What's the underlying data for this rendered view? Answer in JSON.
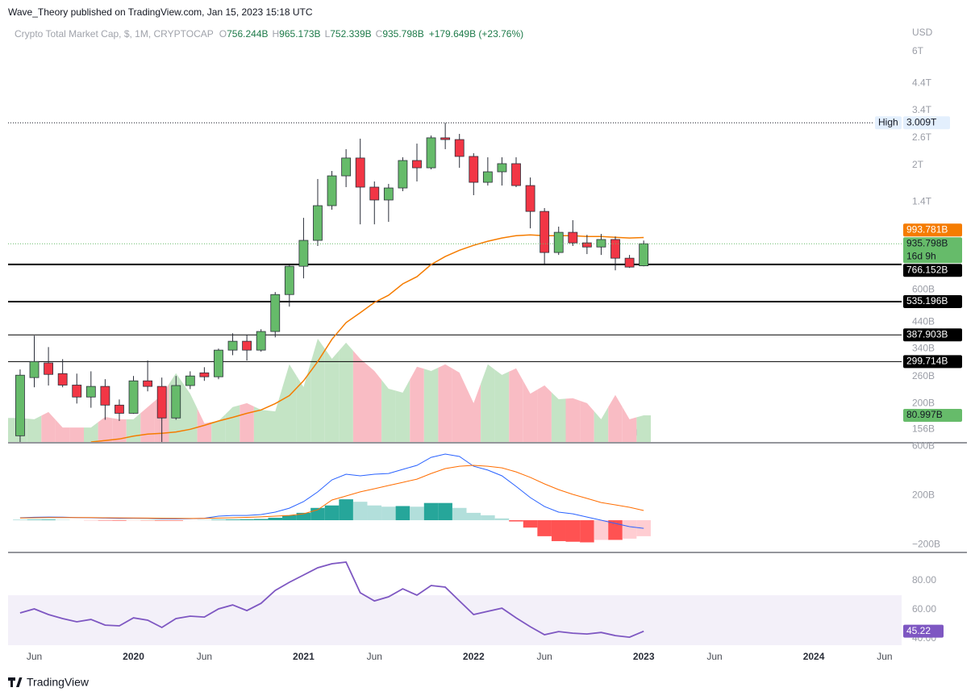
{
  "header": {
    "text": "Wave_Theory published on TradingView.com, Jan 15, 2023 15:18 UTC"
  },
  "footer": {
    "brand": "TradingView"
  },
  "chart_data": [
    {
      "type": "candlestick",
      "title": "Crypto Total Market Cap, $, 1M, CRYPTOCAP",
      "legend_values": [
        {
          "prefix": "O",
          "label": "756.244B"
        },
        {
          "prefix": "H",
          "label": "965.173B"
        },
        {
          "prefix": "L",
          "label": "752.339B"
        },
        {
          "prefix": "C",
          "label": "935.798B"
        }
      ],
      "change_label": "+179.649B (+23.76%)",
      "axis_label": "USD",
      "log_scale": true,
      "ylim": [
        138000000000.0,
        7800000000000.0
      ],
      "yticks": [
        {
          "value": 6000000000000.0,
          "label": "6T"
        },
        {
          "value": 4400000000000.0,
          "label": "4.4T"
        },
        {
          "value": 3400000000000.0,
          "label": "3.4T"
        },
        {
          "value": 2600000000000.0,
          "label": "2.6T"
        },
        {
          "value": 2000000000000.0,
          "label": "2T"
        },
        {
          "value": 1400000000000.0,
          "label": "1.4T"
        },
        {
          "value": 600000000000.0,
          "label": "600B"
        },
        {
          "value": 440000000000.0,
          "label": "440B"
        },
        {
          "value": 340000000000.0,
          "label": "340B"
        },
        {
          "value": 260000000000.0,
          "label": "260B"
        },
        {
          "value": 200000000000.0,
          "label": "200B"
        },
        {
          "value": 156000000000.0,
          "label": "156B"
        }
      ],
      "xlim": [
        -0.85,
        62.2
      ],
      "xticks": [
        {
          "value": 1,
          "label": "Jun"
        },
        {
          "value": 8,
          "label": "2020"
        },
        {
          "value": 13,
          "label": "Jun"
        },
        {
          "value": 20,
          "label": "2021"
        },
        {
          "value": 25,
          "label": "Jun"
        },
        {
          "value": 32,
          "label": "2022"
        },
        {
          "value": 37,
          "label": "Jun"
        },
        {
          "value": 44,
          "label": "2023"
        },
        {
          "value": 49,
          "label": "Jun"
        },
        {
          "value": 56,
          "label": "2024"
        },
        {
          "value": 61,
          "label": "Jun"
        }
      ],
      "open": [
        146500000000.0,
        257000000000.0,
        296000000000.0,
        267000000000.0,
        239000000000.0,
        213000000000.0,
        236000000000.0,
        197000000000.0,
        182000000000.0,
        249000000000.0,
        236000000000.0,
        174000000000.0,
        238000000000.0,
        269000000000.0,
        259000000000.0,
        335000000000.0,
        365000000000.0,
        335000000000.0,
        401000000000.0,
        573000000000.0,
        753000000000.0,
        967000000000.0,
        1352000000000.0,
        1803000000000.0,
        2142000000000.0,
        1617000000000.0,
        1428000000000.0,
        1604000000000.0,
        2091000000000.0,
        1949000000000.0,
        2603000000000.0,
        2560000000000.0,
        2175000000000.0,
        1694000000000.0,
        1875000000000.0,
        2028000000000.0,
        1642000000000.0,
        1279000000000.0,
        860000000000.0,
        1045000000000.0,
        944000000000.0,
        907000000000.0,
        975000000000.0,
        814000000000.0,
        756244000000.0
      ],
      "high": [
        278000000000.0,
        385000000000.0,
        345000000000.0,
        307000000000.0,
        267000000000.0,
        273000000000.0,
        253000000000.0,
        208000000000.0,
        261000000000.0,
        303000000000.0,
        257000000000.0,
        261000000000.0,
        273000000000.0,
        284000000000.0,
        340000000000.0,
        394000000000.0,
        388000000000.0,
        410000000000.0,
        587000000000.0,
        766000000000.0,
        1202000000000.0,
        1749000000000.0,
        1890000000000.0,
        2333000000000.0,
        2582000000000.0,
        1708000000000.0,
        1668000000000.0,
        2157000000000.0,
        2462000000000.0,
        2662000000000.0,
        3009000000000.0,
        2704000000000.0,
        2243000000000.0,
        2157000000000.0,
        2157000000000.0,
        2157000000000.0,
        1775000000000.0,
        1321000000000.0,
        1104000000000.0,
        1175000000000.0,
        1020000000000.0,
        1029000000000.0,
        1004000000000.0,
        840000000000.0,
        965173000000.0
      ],
      "low": [
        138000000000.0,
        234000000000.0,
        238000000000.0,
        234000000000.0,
        200000000000.0,
        192000000000.0,
        171000000000.0,
        169000000000.0,
        181000000000.0,
        225000000000.0,
        138000000000.0,
        171000000000.0,
        230000000000.0,
        249000000000.0,
        253000000000.0,
        319000000000.0,
        303000000000.0,
        330000000000.0,
        379000000000.0,
        510000000000.0,
        670000000000.0,
        916000000000.0,
        1300000000000.0,
        1617000000000.0,
        1129000000000.0,
        1129000000000.0,
        1156000000000.0,
        1555000000000.0,
        1708000000000.0,
        1920000000000.0,
        2333000000000.0,
        1949000000000.0,
        1496000000000.0,
        1642000000000.0,
        1642000000000.0,
        1617000000000.0,
        1086000000000.0,
        771000000000.0,
        840000000000.0,
        916000000000.0,
        847000000000.0,
        840000000000.0,
        724000000000.0,
        741000000000.0,
        752339000000.0
      ],
      "close": [
        263000000000.0,
        300000000000.0,
        265000000000.0,
        239000000000.0,
        213000000000.0,
        236000000000.0,
        197000000000.0,
        182000000000.0,
        249000000000.0,
        236000000000.0,
        174000000000.0,
        238000000000.0,
        261000000000.0,
        259000000000.0,
        335000000000.0,
        365000000000.0,
        335000000000.0,
        401000000000.0,
        573000000000.0,
        753000000000.0,
        967000000000.0,
        1352000000000.0,
        1803000000000.0,
        2142000000000.0,
        1617000000000.0,
        1428000000000.0,
        1604000000000.0,
        2091000000000.0,
        1949000000000.0,
        2603000000000.0,
        2560000000000.0,
        2175000000000.0,
        1694000000000.0,
        1875000000000.0,
        2028000000000.0,
        1642000000000.0,
        1279000000000.0,
        860000000000.0,
        1045000000000.0,
        944000000000.0,
        907000000000.0,
        975000000000.0,
        814000000000.0,
        747000000000.0,
        935798000000.0
      ],
      "price_label": "935.798B",
      "countdown": "16d 9h",
      "up_color": "#66bb6a",
      "down_color": "#f23645",
      "high_marker": {
        "label": "High",
        "value": 3009000000000.0,
        "value_label": "3.009T"
      },
      "ma": {
        "color": "#f57c00",
        "last_label": "993.781B",
        "values": [
          null,
          null,
          null,
          null,
          null,
          138000000000.0,
          140000000000.0,
          142000000000.0,
          146000000000.0,
          149000000000.0,
          150000000000.0,
          152000000000.0,
          156000000000.0,
          162000000000.0,
          169000000000.0,
          175000000000.0,
          182000000000.0,
          188000000000.0,
          200000000000.0,
          216000000000.0,
          249000000000.0,
          300000000000.0,
          372000000000.0,
          437000000000.0,
          481000000000.0,
          531000000000.0,
          569000000000.0,
          635000000000.0,
          681000000000.0,
          766000000000.0,
          827000000000.0,
          879000000000.0,
          922000000000.0,
          959000000000.0,
          989000000000.0,
          1012000000000.0,
          1020000000000.0,
          1012000000000.0,
          1012000000000.0,
          1012000000000.0,
          1004000000000.0,
          1004000000000.0,
          996000000000.0,
          989000000000.0,
          993781000000.0
        ]
      },
      "levels": [
        {
          "value": 766152000000.0,
          "label": "766.152B",
          "width": 2
        },
        {
          "value": 535196000000.0,
          "label": "535.196B",
          "width": 2
        },
        {
          "value": 387903000000.0,
          "label": "387.903B",
          "width": 1
        },
        {
          "value": 299714000000.0,
          "label": "299.714B",
          "width": 1
        }
      ],
      "volume": {
        "ylim": [
          0,
          400000000000.0
        ],
        "up_color": "#c4e4c5",
        "down_color": "#f9bcc4",
        "last_label": "80.997B",
        "values": [
          73000000000.0,
          69000000000.0,
          91000000000.0,
          44000000000.0,
          44000000000.0,
          44000000000.0,
          76000000000.0,
          69000000000.0,
          69000000000.0,
          106000000000.0,
          143000000000.0,
          209000000000.0,
          147000000000.0,
          57000000000.0,
          64000000000.0,
          106000000000.0,
          118000000000.0,
          98000000000.0,
          93000000000.0,
          236000000000.0,
          167000000000.0,
          314000000000.0,
          253000000000.0,
          302000000000.0,
          253000000000.0,
          216000000000.0,
          162000000000.0,
          150000000000.0,
          229000000000.0,
          216000000000.0,
          236000000000.0,
          211000000000.0,
          118000000000.0,
          236000000000.0,
          204000000000.0,
          224000000000.0,
          147000000000.0,
          172000000000.0,
          130000000000.0,
          133000000000.0,
          118000000000.0,
          69000000000.0,
          143000000000.0,
          69000000000.0,
          80997000000.0
        ]
      }
    },
    {
      "type": "macd",
      "ylim": [
        -262000000000.0,
        623000000000.0
      ],
      "yticks": [
        {
          "value": 600000000000.0,
          "label": "600B"
        },
        {
          "value": 200000000000.0,
          "label": "200B"
        },
        {
          "value": -200000000000.0,
          "label": "−200B"
        }
      ],
      "macd": {
        "color": "#2962ff",
        "values": [
          20000000000.0,
          24000000000.0,
          26000000000.0,
          25000000000.0,
          22000000000.0,
          20000000000.0,
          17000000000.0,
          15000000000.0,
          16000000000.0,
          15000000000.0,
          12000000000.0,
          11000000000.0,
          13000000000.0,
          16000000000.0,
          33000000000.0,
          39000000000.0,
          39000000000.0,
          46000000000.0,
          66000000000.0,
          98000000000.0,
          151000000000.0,
          230000000000.0,
          328000000000.0,
          374000000000.0,
          361000000000.0,
          374000000000.0,
          380000000000.0,
          413000000000.0,
          446000000000.0,
          511000000000.0,
          538000000000.0,
          518000000000.0,
          439000000000.0,
          407000000000.0,
          361000000000.0,
          275000000000.0,
          184000000000.0,
          111000000000.0,
          66000000000.0,
          52000000000.0,
          26000000000.0,
          0,
          -26000000000.0,
          -52000000000.0,
          -66000000000.0
        ]
      },
      "signal": {
        "color": "#ff6d00",
        "values": [
          18000000000.0,
          20000000000.0,
          21000000000.0,
          22000000000.0,
          22000000000.0,
          21000000000.0,
          20000000000.0,
          19000000000.0,
          18000000000.0,
          17000000000.0,
          16000000000.0,
          15000000000.0,
          14000000000.0,
          15000000000.0,
          17000000000.0,
          20000000000.0,
          23000000000.0,
          27000000000.0,
          33000000000.0,
          39000000000.0,
          52000000000.0,
          85000000000.0,
          164000000000.0,
          197000000000.0,
          230000000000.0,
          256000000000.0,
          282000000000.0,
          308000000000.0,
          334000000000.0,
          380000000000.0,
          420000000000.0,
          439000000000.0,
          446000000000.0,
          439000000000.0,
          426000000000.0,
          393000000000.0,
          348000000000.0,
          295000000000.0,
          249000000000.0,
          210000000000.0,
          177000000000.0,
          144000000000.0,
          125000000000.0,
          105000000000.0,
          79000000000.0
        ]
      },
      "histogram": {
        "colors": [
          "#26a69a",
          "#b2dfdb",
          "#ff5252",
          "#ffcdd2"
        ],
        "values": [
          2000000000.0,
          4000000000.0,
          5000000000.0,
          3000000000.0,
          0,
          -1000000000.0,
          -3000000000.0,
          -4000000000.0,
          -2000000000.0,
          -2000000000.0,
          -4000000000.0,
          -4000000000.0,
          -1000000000.0,
          1000000000.0,
          4000000000.0,
          6000000000.0,
          8000000000.0,
          10000000000.0,
          20000000000.0,
          40000000000.0,
          60000000000.0,
          100000000000.0,
          120000000000.0,
          170000000000.0,
          150000000000.0,
          120000000000.0,
          110000000000.0,
          115000000000.0,
          110000000000.0,
          140000000000.0,
          140000000000.0,
          100000000000.0,
          60000000000.0,
          40000000000.0,
          15000000000.0,
          -10000000000.0,
          -60000000000.0,
          -130000000000.0,
          -170000000000.0,
          -175000000000.0,
          -180000000000.0,
          -160000000000.0,
          -160000000000.0,
          -150000000000.0,
          -130000000000.0
        ]
      }
    },
    {
      "type": "rsi",
      "ylim": [
        35.6,
        98.9
      ],
      "yticks": [
        {
          "value": 80,
          "label": "80.00"
        },
        {
          "value": 60,
          "label": "60.00"
        },
        {
          "value": 40,
          "label": "40.00"
        }
      ],
      "band": [
        30,
        70
      ],
      "color": "#7e57c2",
      "last_label": "45.22",
      "values": [
        57.8,
        60.6,
        56.7,
        53.9,
        51.7,
        53.3,
        49.4,
        48.9,
        54.4,
        52.8,
        47.8,
        53.9,
        55.6,
        55,
        60.6,
        63.3,
        59.4,
        64.4,
        73.3,
        78.9,
        83.9,
        88.9,
        91.7,
        92.8,
        71.7,
        66.1,
        68.9,
        74.4,
        70,
        76.7,
        75.6,
        66.1,
        56.7,
        58.9,
        61.1,
        54.4,
        48.3,
        42.8,
        45,
        43.9,
        43.3,
        44.4,
        42.2,
        41.1,
        45.22
      ]
    }
  ]
}
